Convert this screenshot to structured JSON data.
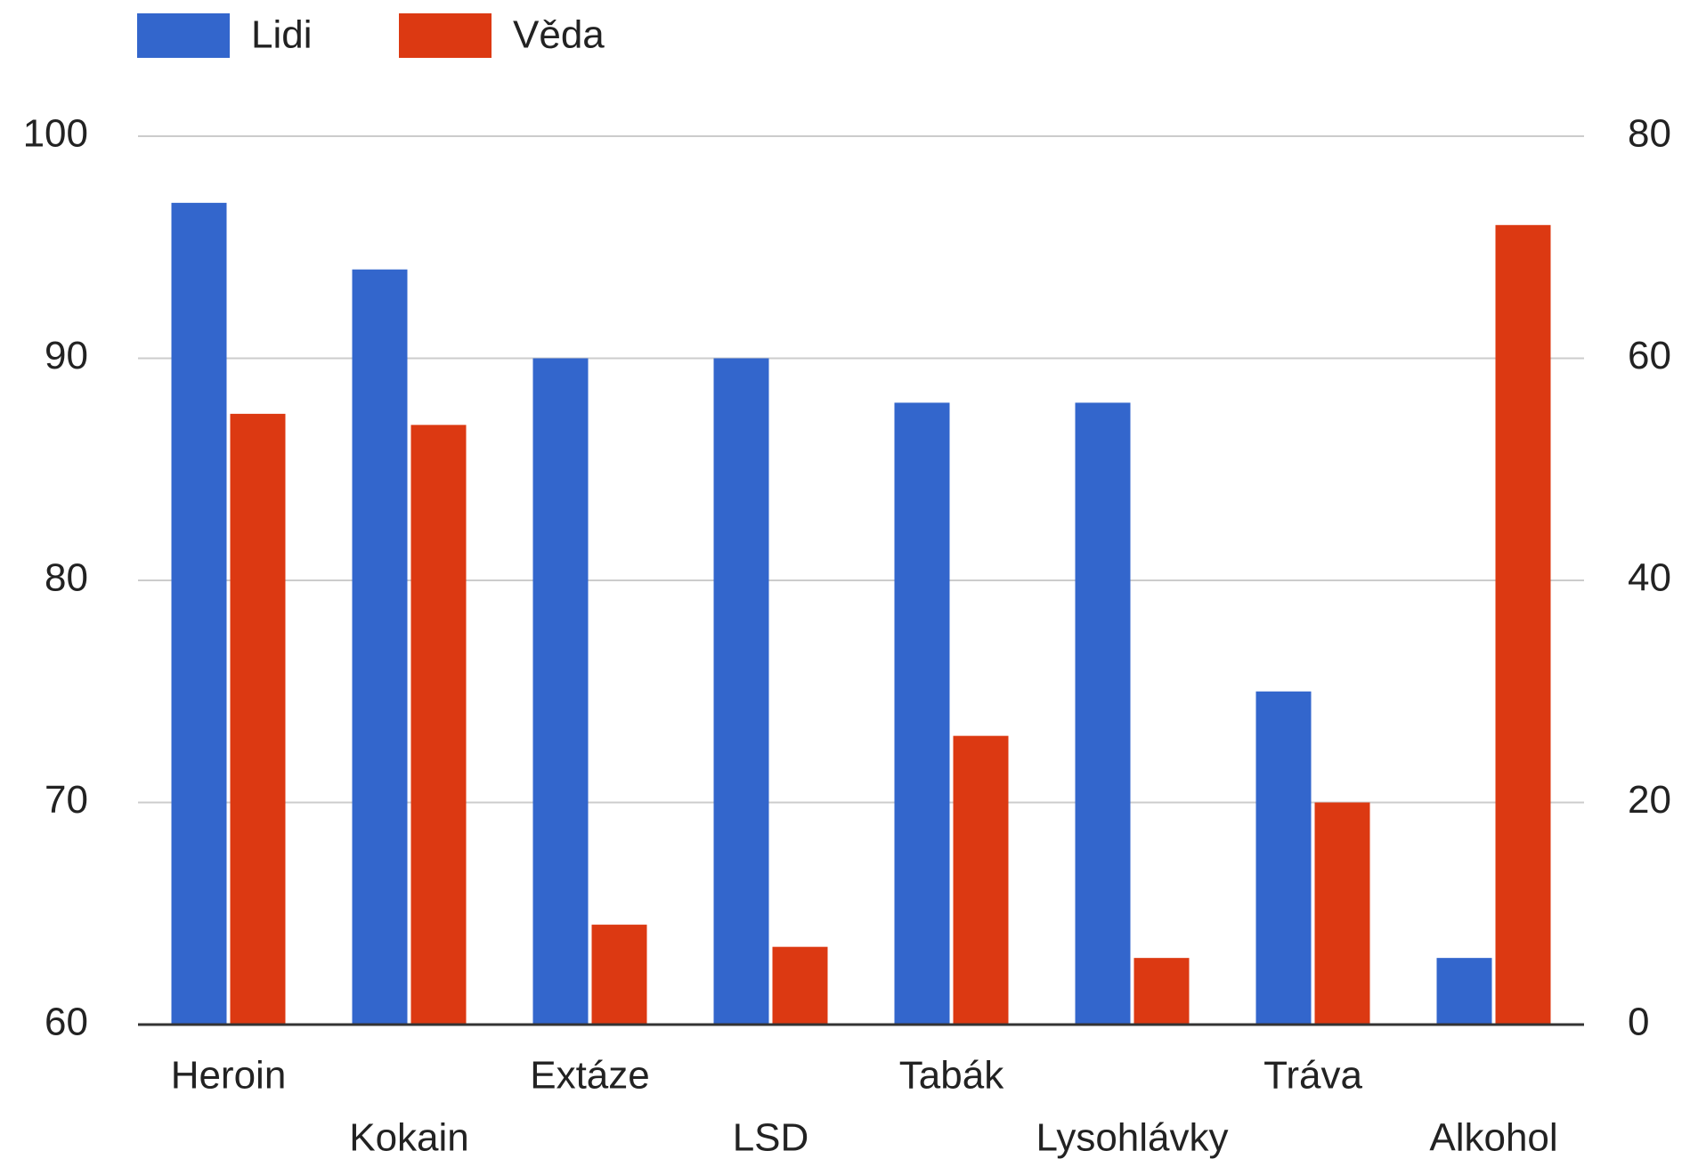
{
  "chart_data": {
    "type": "bar",
    "categories": [
      "Heroin",
      "Kokain",
      "Extáze",
      "LSD",
      "Tabák",
      "Lysohlávky",
      "Tráva",
      "Alkohol"
    ],
    "series": [
      {
        "name": "Lidi",
        "color": "#3366cc",
        "values": [
          97,
          94,
          90,
          90,
          88,
          88,
          75,
          63
        ]
      },
      {
        "name": "Věda",
        "color": "#dc3912",
        "axis": "y2",
        "values": [
          55,
          54,
          9,
          7,
          26,
          6,
          20,
          72
        ]
      }
    ],
    "ylim": [
      60,
      100
    ],
    "yticks": [
      60,
      70,
      80,
      90,
      100
    ],
    "y2lim": [
      0,
      80
    ],
    "y2ticks": [
      0,
      20,
      40,
      60,
      80
    ],
    "grid": true,
    "legend": "top"
  }
}
